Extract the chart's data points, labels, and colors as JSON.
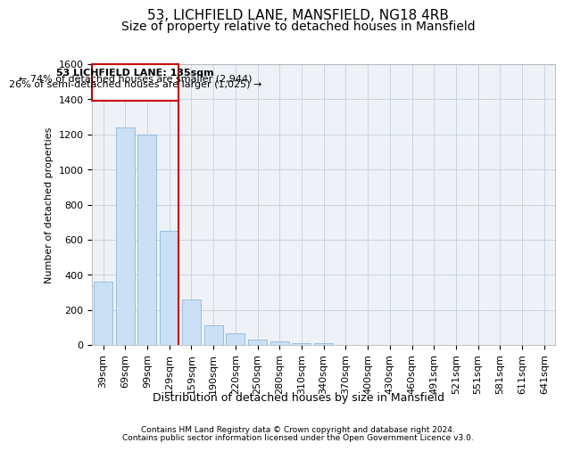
{
  "title1": "53, LICHFIELD LANE, MANSFIELD, NG18 4RB",
  "title2": "Size of property relative to detached houses in Mansfield",
  "xlabel": "Distribution of detached houses by size in Mansfield",
  "ylabel": "Number of detached properties",
  "footer1": "Contains HM Land Registry data © Crown copyright and database right 2024.",
  "footer2": "Contains public sector information licensed under the Open Government Licence v3.0.",
  "annotation_line1": "53 LICHFIELD LANE: 135sqm",
  "annotation_line2": "← 74% of detached houses are smaller (2,944)",
  "annotation_line3": "26% of semi-detached houses are larger (1,025) →",
  "bar_color": "#cce0f5",
  "bar_edge_color": "#7bafd4",
  "marker_color": "#cc0000",
  "categories": [
    "39sqm",
    "69sqm",
    "99sqm",
    "129sqm",
    "159sqm",
    "190sqm",
    "220sqm",
    "250sqm",
    "280sqm",
    "310sqm",
    "340sqm",
    "370sqm",
    "400sqm",
    "430sqm",
    "460sqm",
    "491sqm",
    "521sqm",
    "551sqm",
    "581sqm",
    "611sqm",
    "641sqm"
  ],
  "values": [
    360,
    1240,
    1200,
    650,
    260,
    110,
    65,
    30,
    20,
    10,
    10,
    0,
    0,
    0,
    0,
    0,
    0,
    0,
    0,
    0,
    0
  ],
  "ylim": [
    0,
    1600
  ],
  "yticks": [
    0,
    200,
    400,
    600,
    800,
    1000,
    1200,
    1400,
    1600
  ],
  "grid_color": "#c8d4e0",
  "plot_bg": "#eef2f7",
  "title1_fontsize": 11,
  "title2_fontsize": 10,
  "ylabel_fontsize": 8,
  "xlabel_fontsize": 9,
  "tick_fontsize": 8,
  "footer_fontsize": 6.5,
  "ann_fontsize": 8
}
